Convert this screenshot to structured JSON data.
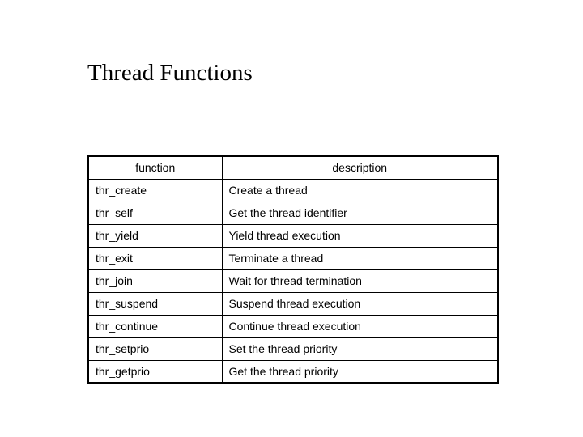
{
  "title": "Thread Functions",
  "table": {
    "type": "table",
    "columns": [
      "function",
      "description"
    ],
    "column_widths": [
      "165px",
      "auto"
    ],
    "header_align": "center",
    "cell_align": "left",
    "border_color": "#000000",
    "outer_border_width": 2,
    "inner_border_width": 1,
    "background_color": "#ffffff",
    "text_color": "#000000",
    "font_family": "Verdana, Geneva, sans-serif",
    "font_size": 14,
    "rows": [
      [
        "thr_create",
        "Create a thread"
      ],
      [
        "thr_self",
        "Get the thread identifier"
      ],
      [
        "thr_yield",
        "Yield thread execution"
      ],
      [
        "thr_exit",
        "Terminate a thread"
      ],
      [
        "thr_join",
        "Wait for thread termination"
      ],
      [
        "thr_suspend",
        "Suspend thread execution"
      ],
      [
        "thr_continue",
        "Continue thread execution"
      ],
      [
        "thr_setprio",
        "Set the thread priority"
      ],
      [
        "thr_getprio",
        "Get the thread priority"
      ]
    ]
  },
  "title_style": {
    "font_family": "Times New Roman, Times, serif",
    "font_size": 29,
    "color": "#000000"
  }
}
